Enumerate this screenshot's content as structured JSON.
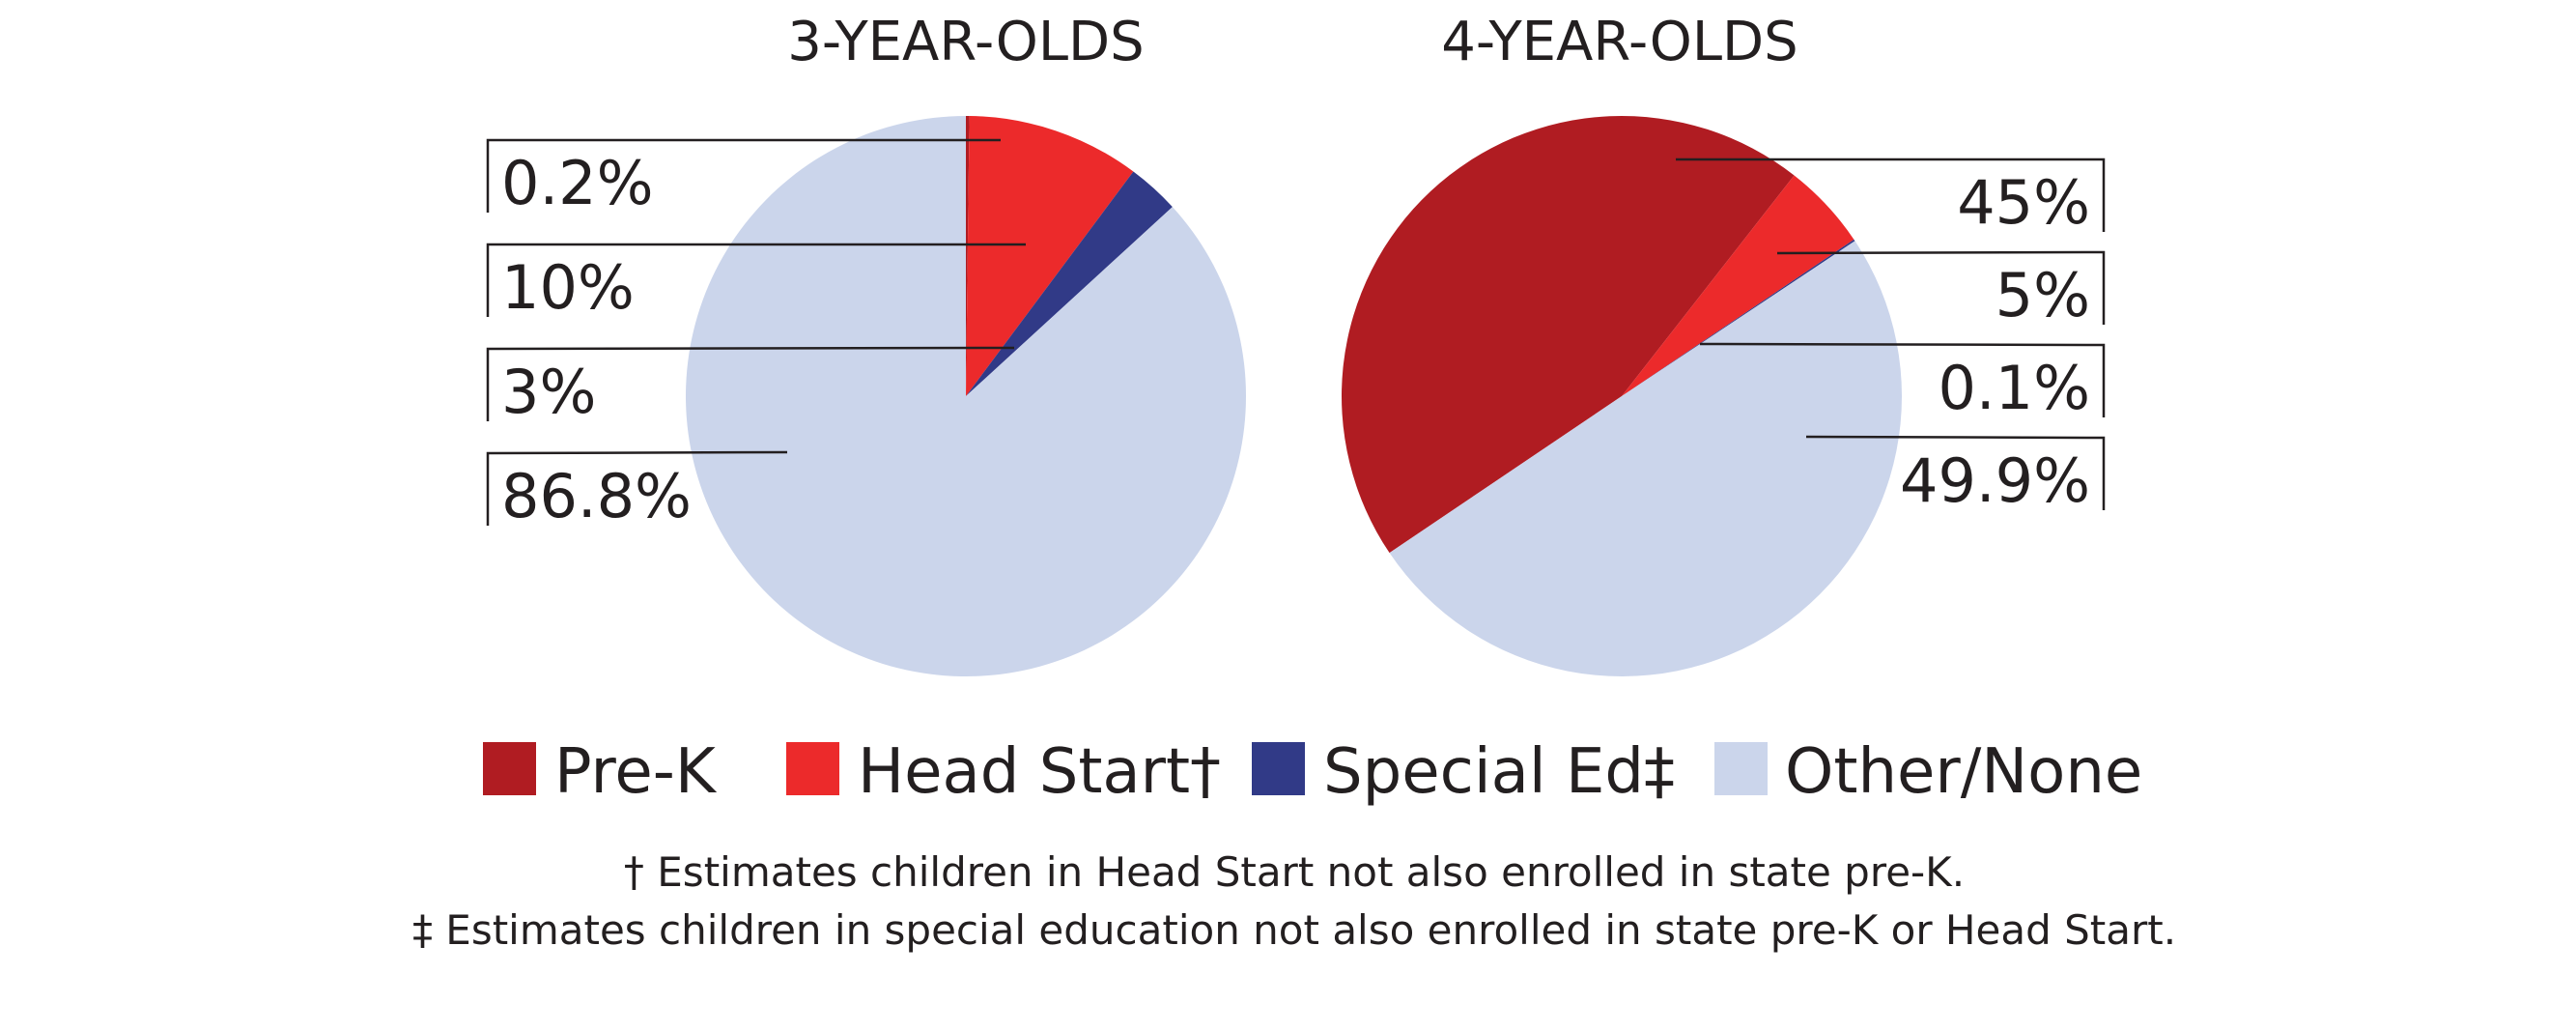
{
  "colors": {
    "prek": "#b01c22",
    "headstart": "#ec2a2b",
    "speced": "#313a87",
    "other": "#cbd5eb",
    "text": "#231f20"
  },
  "legend": [
    {
      "label": "Pre-K",
      "key": "prek"
    },
    {
      "label": "Head Start†",
      "key": "headstart"
    },
    {
      "label": "Special Ed‡",
      "key": "speced"
    },
    {
      "label": "Other/None",
      "key": "other"
    }
  ],
  "footnotes": [
    "† Estimates children in Head Start not also enrolled in state pre-K.",
    "‡ Estimates children in special education not also enrolled in state pre-K or Head Start."
  ],
  "chart_data": [
    {
      "type": "pie",
      "title": "3-YEAR-OLDS",
      "categories": [
        "Pre-K",
        "Head Start",
        "Special Ed",
        "Other/None"
      ],
      "values": [
        0.2,
        10,
        3,
        86.8
      ],
      "labels": [
        "0.2%",
        "10%",
        "3%",
        "86.8%"
      ],
      "label_side": "left",
      "start_angle_deg": 0,
      "direction": "clockwise"
    },
    {
      "type": "pie",
      "title": "4-YEAR-OLDS",
      "categories": [
        "Pre-K",
        "Head Start",
        "Special Ed",
        "Other/None"
      ],
      "values": [
        45,
        5,
        0.1,
        49.9
      ],
      "labels": [
        "45%",
        "5%",
        "0.1%",
        "49.9%"
      ],
      "label_side": "right",
      "start_angle_deg": 236,
      "direction": "clockwise"
    }
  ]
}
